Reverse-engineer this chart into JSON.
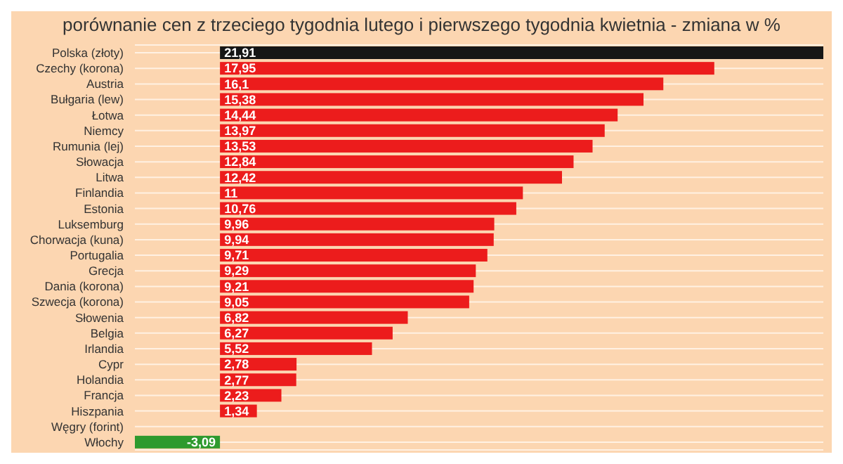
{
  "chart_data": {
    "type": "bar",
    "orientation": "horizontal",
    "title": "porównanie cen z trzeciego tygodnia lutego i pierwszego tygodnia kwietnia - zmiana w %",
    "categories": [
      "Polska (złoty)",
      "Czechy (korona)",
      "Austria",
      "Bułgaria (lew)",
      "Łotwa",
      "Niemcy",
      "Rumunia (lej)",
      "Słowacja",
      "Litwa",
      "Finlandia",
      "Estonia",
      "Luksemburg",
      "Chorwacja (kuna)",
      "Portugalia",
      "Grecja",
      "Dania (korona)",
      "Szwecja (korona)",
      "Słowenia",
      "Belgia",
      "Irlandia",
      "Cypr",
      "Holandia",
      "Francja",
      "Hiszpania",
      "Węgry (forint)",
      "Włochy"
    ],
    "values": [
      21.91,
      17.95,
      16.1,
      15.38,
      14.44,
      13.97,
      13.53,
      12.84,
      12.42,
      11,
      10.76,
      9.96,
      9.94,
      9.71,
      9.29,
      9.21,
      9.05,
      6.82,
      6.27,
      5.52,
      2.78,
      2.77,
      2.23,
      1.34,
      null,
      -3.09
    ],
    "value_labels": [
      "21,91",
      "17,95",
      "16,1",
      "15,38",
      "14,44",
      "13,97",
      "13,53",
      "12,84",
      "12,42",
      "11",
      "10,76",
      "9,96",
      "9,94",
      "9,71",
      "9,29",
      "9,21",
      "9,05",
      "6,82",
      "6,27",
      "5,52",
      "2,78",
      "2,77",
      "2,23",
      "1,34",
      null,
      "-3,09"
    ],
    "colors": [
      "#161616",
      "#ec1c1c",
      "#ec1c1c",
      "#ec1c1c",
      "#ec1c1c",
      "#ec1c1c",
      "#ec1c1c",
      "#ec1c1c",
      "#ec1c1c",
      "#ec1c1c",
      "#ec1c1c",
      "#ec1c1c",
      "#ec1c1c",
      "#ec1c1c",
      "#ec1c1c",
      "#ec1c1c",
      "#ec1c1c",
      "#ec1c1c",
      "#ec1c1c",
      "#ec1c1c",
      "#ec1c1c",
      "#ec1c1c",
      "#ec1c1c",
      "#ec1c1c",
      "#ec1c1c",
      "#2e9a2e"
    ],
    "grid": "y"
  }
}
